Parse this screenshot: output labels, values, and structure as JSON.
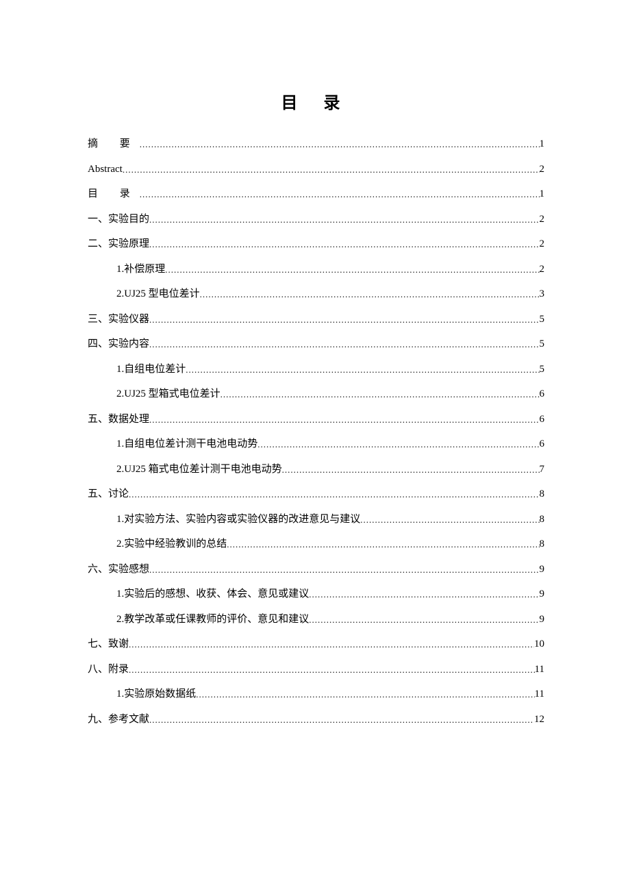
{
  "title": "目 录",
  "entries": [
    {
      "label": "摘  要",
      "page": "1",
      "level": 0,
      "spaced": true
    },
    {
      "label": "Abstract",
      "page": "2",
      "level": 0
    },
    {
      "label": "目  录",
      "page": "1",
      "level": 0,
      "spaced": true
    },
    {
      "label": "一、实验目的",
      "page": "2",
      "level": 0
    },
    {
      "label": "二、实验原理",
      "page": "2",
      "level": 0
    },
    {
      "label": "1.补偿原理",
      "page": "2",
      "level": 1
    },
    {
      "label": "2.UJ25 型电位差计",
      "page": "3",
      "level": 1
    },
    {
      "label": "三、实验仪器",
      "page": "5",
      "level": 0
    },
    {
      "label": "四、实验内容",
      "page": "5",
      "level": 0
    },
    {
      "label": "1.自组电位差计",
      "page": "5",
      "level": 1
    },
    {
      "label": "2.UJ25 型箱式电位差计",
      "page": "6",
      "level": 1
    },
    {
      "label": "五、数据处理",
      "page": "6",
      "level": 0
    },
    {
      "label": "1.自组电位差计测干电池电动势",
      "page": "6",
      "level": 1
    },
    {
      "label": "2.UJ25 箱式电位差计测干电池电动势",
      "page": "7",
      "level": 1
    },
    {
      "label": "五、讨论",
      "page": "8",
      "level": 0
    },
    {
      "label": "1.对实验方法、实验内容或实验仪器的改进意见与建议",
      "page": "8",
      "level": 1
    },
    {
      "label": "2.实验中经验教训的总结",
      "page": "8",
      "level": 1
    },
    {
      "label": "六、实验感想",
      "page": "9",
      "level": 0
    },
    {
      "label": "1.实验后的感想、收获、体会、意见或建议",
      "page": "9",
      "level": 1
    },
    {
      "label": "2.教学改革或任课教师的评价、意见和建议",
      "page": "9",
      "level": 1
    },
    {
      "label": "七、致谢",
      "page": "10",
      "level": 0
    },
    {
      "label": "八、附录",
      "page": "11",
      "level": 0
    },
    {
      "label": "1.实验原始数据纸",
      "page": "11",
      "level": 1
    },
    {
      "label": "九、参考文献",
      "page": "12",
      "level": 0
    }
  ]
}
